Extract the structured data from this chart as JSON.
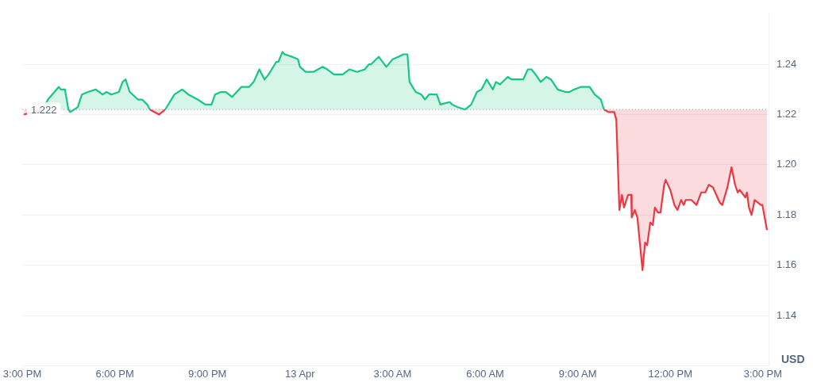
{
  "chart_data": {
    "type": "line",
    "ylabel": "USD",
    "x": [
      "--04-12T15:03",
      "--04-12T15:41",
      "--04-12T15:50",
      "--04-12T16:11",
      "--04-12T16:15",
      "--04-12T16:23",
      "--04-12T16:29",
      "--04-12T16:30",
      "--04-12T16:33",
      "--04-12T16:41",
      "--04-12T16:48",
      "--04-12T16:56",
      "--04-12T17:08",
      "--04-12T17:23",
      "--04-12T17:36",
      "--04-12T17:44",
      "--04-12T17:53",
      "--04-12T18:08",
      "--04-12T18:15",
      "--04-12T18:21",
      "--04-12T18:29",
      "--04-12T18:45",
      "--04-12T18:53",
      "--04-12T19:03",
      "--04-12T19:08",
      "--04-12T19:26",
      "--04-12T19:38",
      "--04-12T19:56",
      "--04-12T20:11",
      "--04-12T20:23",
      "--04-12T20:41",
      "--04-12T20:56",
      "--04-12T21:08",
      "--04-12T21:15",
      "--04-12T21:26",
      "--04-12T21:36",
      "--04-12T21:48",
      "--04-12T22:06",
      "--04-12T22:21",
      "--04-12T22:30",
      "--04-12T22:41",
      "--04-12T22:51",
      "--04-12T22:59",
      "--04-12T23:14",
      "--04-12T23:18",
      "--04-12T23:26",
      "--04-12T23:30",
      "--04-12T23:45",
      "--04-12T23:56",
      "--04-13T00:00",
      "--04-13T00:11",
      "--04-13T00:15",
      "--04-13T00:26",
      "--04-13T00:44",
      "--04-13T00:53",
      "--04-13T01:06",
      "--04-13T01:23",
      "--04-13T01:36",
      "--04-13T01:51",
      "--04-13T02:06",
      "--04-13T02:14",
      "--04-13T02:18",
      "--04-13T02:33",
      "--04-13T02:48",
      "--04-13T03:00",
      "--04-13T03:11",
      "--04-13T03:21",
      "--04-13T03:29",
      "--04-13T03:33",
      "--04-13T03:45",
      "--04-13T03:56",
      "--04-13T04:03",
      "--04-13T04:11",
      "--04-13T04:26",
      "--04-13T04:33",
      "--04-13T04:51",
      "--04-13T04:56",
      "--04-13T05:06",
      "--04-13T05:21",
      "--04-13T05:33",
      "--04-13T05:44",
      "--04-13T05:53",
      "--04-13T06:03",
      "--04-13T06:15",
      "--04-13T06:21",
      "--04-13T06:29",
      "--04-13T06:44",
      "--04-13T06:51",
      "--04-13T07:00",
      "--04-13T07:14",
      "--04-13T07:23",
      "--04-13T07:30",
      "--04-13T07:38",
      "--04-13T07:48",
      "--04-13T07:59",
      "--04-13T08:08",
      "--04-13T08:21",
      "--04-13T08:36",
      "--04-13T08:44",
      "--04-13T08:53",
      "--04-13T09:06",
      "--04-13T09:23",
      "--04-13T09:33",
      "--04-13T09:45",
      "--04-13T09:51",
      "--04-13T10:00",
      "--04-13T10:11",
      "--04-13T10:15",
      "--04-13T10:21",
      "--04-13T10:26",
      "--04-13T10:30",
      "--04-13T10:38",
      "--04-13T10:44",
      "--04-13T10:45",
      "--04-13T10:51",
      "--04-13T10:56",
      "--04-13T11:06",
      "--04-13T11:11",
      "--04-13T11:15",
      "--04-13T11:21",
      "--04-13T11:26",
      "--04-13T11:30",
      "--04-13T11:36",
      "--04-13T11:41",
      "--04-13T11:48",
      "--04-13T11:51",
      "--04-13T12:00",
      "--04-13T12:08",
      "--04-13T12:14",
      "--04-13T12:21",
      "--04-13T12:26",
      "--04-13T12:30",
      "--04-13T12:41",
      "--04-13T12:51",
      "--04-13T13:00",
      "--04-13T13:08",
      "--04-13T13:15",
      "--04-13T13:23",
      "--04-13T13:36",
      "--04-13T13:41",
      "--04-13T13:51",
      "--04-13T13:59",
      "--04-13T14:06",
      "--04-13T14:11",
      "--04-13T14:15",
      "--04-13T14:26",
      "--04-13T14:29",
      "--04-13T14:33",
      "--04-13T14:38",
      "--04-13T14:44",
      "--04-13T14:56",
      "--04-13T14:59",
      "--04-13T15:08"
    ],
    "series": [
      {
        "color": "#16c784",
        "values": [
          null,
          1.222,
          1.226,
          1.231,
          1.23,
          1.23,
          1.223,
          1.222,
          1.221,
          1.222,
          1.223,
          1.228,
          1.229,
          1.23,
          1.228,
          1.229,
          1.228,
          1.229,
          1.233,
          1.234,
          1.229,
          1.226,
          1.226,
          1.224,
          1.222,
          null,
          1.222,
          1.228,
          1.23,
          1.228,
          1.226,
          1.224,
          1.224,
          1.228,
          1.229,
          1.229,
          1.227,
          1.231,
          1.231,
          1.233,
          1.238,
          1.234,
          1.236,
          1.241,
          1.241,
          1.245,
          1.244,
          1.243,
          1.242,
          1.239,
          1.237,
          1.237,
          1.237,
          1.239,
          1.238,
          1.236,
          1.236,
          1.238,
          1.237,
          1.238,
          1.24,
          1.24,
          1.243,
          1.239,
          1.242,
          1.243,
          1.244,
          1.244,
          1.233,
          1.229,
          1.228,
          1.226,
          1.228,
          1.228,
          1.224,
          1.225,
          1.224,
          1.223,
          1.222,
          1.224,
          1.229,
          1.23,
          1.234,
          1.23,
          1.233,
          1.232,
          1.235,
          1.234,
          1.234,
          1.234,
          1.238,
          1.238,
          1.236,
          1.233,
          1.235,
          1.234,
          1.23,
          1.229,
          1.229,
          1.23,
          1.231,
          1.231,
          1.228,
          1.226,
          1.222,
          null,
          null,
          null,
          null,
          null,
          null,
          null,
          null,
          null,
          null,
          null,
          null,
          null,
          null,
          null,
          null,
          null,
          null,
          null,
          null,
          null,
          null,
          null,
          null,
          null,
          null,
          null,
          null,
          null,
          null,
          null,
          null,
          null,
          null,
          null,
          null,
          null,
          null,
          null,
          null,
          null,
          null,
          null,
          null,
          null,
          null,
          null,
          null
        ]
      },
      {
        "color": "#ea3943",
        "values": [
          1.22,
          1.222,
          null,
          null,
          null,
          null,
          null,
          null,
          null,
          null,
          null,
          null,
          null,
          null,
          null,
          null,
          null,
          null,
          null,
          null,
          null,
          null,
          null,
          null,
          1.222,
          1.22,
          1.222,
          null,
          null,
          null,
          null,
          null,
          null,
          null,
          null,
          null,
          null,
          null,
          null,
          null,
          null,
          null,
          null,
          null,
          null,
          null,
          null,
          null,
          null,
          null,
          null,
          null,
          null,
          null,
          null,
          null,
          null,
          null,
          null,
          null,
          null,
          null,
          null,
          null,
          null,
          null,
          null,
          null,
          null,
          null,
          null,
          null,
          null,
          null,
          null,
          null,
          null,
          null,
          null,
          null,
          null,
          null,
          null,
          null,
          null,
          null,
          null,
          null,
          null,
          null,
          null,
          null,
          null,
          null,
          null,
          null,
          null,
          null,
          null,
          null,
          null,
          null,
          null,
          null,
          1.222,
          1.221,
          1.221,
          1.218,
          1.182,
          1.188,
          1.183,
          1.188,
          1.188,
          1.179,
          1.182,
          1.179,
          1.158,
          1.169,
          1.168,
          1.177,
          1.176,
          1.183,
          1.181,
          1.181,
          1.192,
          1.194,
          1.19,
          1.184,
          1.182,
          1.186,
          1.184,
          1.186,
          1.186,
          1.184,
          1.189,
          1.189,
          1.192,
          1.191,
          1.185,
          1.184,
          1.191,
          1.199,
          1.192,
          1.189,
          1.19,
          1.187,
          1.189,
          1.183,
          1.18,
          1.186,
          1.184,
          1.184,
          1.174
        ]
      }
    ],
    "xlim": [
      "--04-12T15:00",
      "--04-13T15:11"
    ],
    "xticks": [
      {
        "value": "--04-12T15:00",
        "label": "3:00 PM"
      },
      {
        "value": "--04-12T18:00",
        "label": "6:00 PM"
      },
      {
        "value": "--04-12T21:00",
        "label": "9:00 PM"
      },
      {
        "value": "--04-13T00:00",
        "label": "13 Apr"
      },
      {
        "value": "--04-13T03:00",
        "label": "3:00 AM"
      },
      {
        "value": "--04-13T06:00",
        "label": "6:00 AM"
      },
      {
        "value": "--04-13T09:00",
        "label": "9:00 AM"
      },
      {
        "value": "--04-13T12:00",
        "label": "12:00 PM"
      },
      {
        "value": "--04-13T15:00",
        "label": "3:00 PM"
      }
    ],
    "ylim": [
      1.12,
      1.26
    ],
    "yticks": [
      1.14,
      1.16,
      1.18,
      {
        "value": 1.2,
        "label": "1.20"
      },
      1.22,
      1.24
    ],
    "ref_lines": [
      {
        "axis": "y",
        "value": 1.222,
        "label": "1.222",
        "color": "#999999",
        "line_style": "dotted"
      }
    ],
    "grid": "y",
    "marker": "none",
    "line_style": "solid"
  }
}
